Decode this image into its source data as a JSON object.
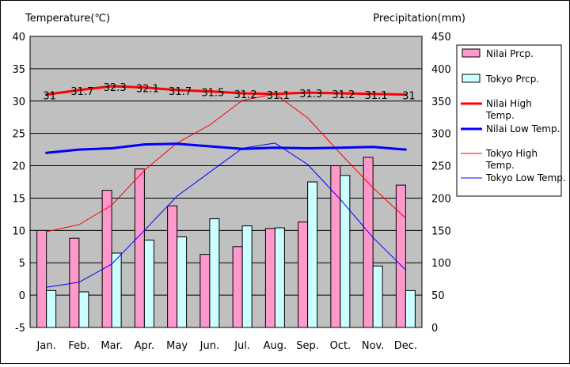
{
  "chart_data": {
    "type": "bar+line",
    "y_left_label": "Temperature(℃)",
    "y_right_label": "Precipitation(mm)",
    "y_left_range": [
      -5,
      40
    ],
    "y_left_ticks": [
      "-5",
      "0",
      "5",
      "10",
      "15",
      "20",
      "25",
      "30",
      "35",
      "40"
    ],
    "y_right_range": [
      0,
      450
    ],
    "y_right_ticks": [
      "0",
      "50",
      "100",
      "150",
      "200",
      "250",
      "300",
      "350",
      "400",
      "450"
    ],
    "categories": [
      "Jan.",
      "Feb.",
      "Mar.",
      "Apr.",
      "May",
      "Jun.",
      "Jul.",
      "Aug.",
      "Sep.",
      "Oct.",
      "Nov.",
      "Dec."
    ],
    "grid": "horizontal",
    "legend_position": "right",
    "bar_series": [
      {
        "name": "Nilai Prcp.",
        "color": "#ff99cc",
        "values": [
          150,
          138,
          212,
          245,
          188,
          113,
          125,
          153,
          163,
          250,
          263,
          220
        ]
      },
      {
        "name": "Tokyo Prcp.",
        "color": "#ccffff",
        "values": [
          57,
          55,
          115,
          135,
          140,
          168,
          157,
          154,
          225,
          235,
          95,
          57
        ]
      }
    ],
    "line_series": [
      {
        "name": "Nilai High Temp.",
        "color": "#ff0000",
        "width": 3,
        "values": [
          31,
          31.7,
          32.3,
          32.1,
          31.7,
          31.5,
          31.2,
          31.1,
          31.3,
          31.2,
          31.1,
          31
        ],
        "labels": [
          "31",
          "31.7",
          "32.3",
          "32.1",
          "31.7",
          "31.5",
          "31.2",
          "31.1",
          "31.3",
          "31.2",
          "31.1",
          "31"
        ]
      },
      {
        "name": "Nilai Low Temp.",
        "color": "#0000ff",
        "width": 3,
        "values": [
          22,
          22.5,
          22.7,
          23.3,
          23.4,
          23,
          22.6,
          22.8,
          22.7,
          22.8,
          22.9,
          22.5
        ]
      },
      {
        "name": "Tokyo High Temp.",
        "color": "#ff0000",
        "width": 1,
        "values": [
          9.8,
          10.9,
          13.9,
          19.3,
          23.5,
          26.3,
          30.1,
          31.1,
          27.4,
          21.9,
          16.6,
          11.9
        ]
      },
      {
        "name": "Tokyo Low Temp.",
        "color": "#0000ff",
        "width": 1,
        "values": [
          1.2,
          2,
          4.8,
          10,
          15.3,
          19,
          22.7,
          23.5,
          20.2,
          14.8,
          8.9,
          3.9
        ]
      }
    ],
    "legend": [
      {
        "label": "Nilai Prcp.",
        "kind": "bar",
        "color": "#ff99cc"
      },
      {
        "label": "Tokyo Prcp.",
        "kind": "bar",
        "color": "#ccffff"
      },
      {
        "label": "Nilai High Temp.",
        "kind": "line",
        "color": "#ff0000",
        "width": 3
      },
      {
        "label": "Nilai Low Temp.",
        "kind": "line",
        "color": "#0000ff",
        "width": 3
      },
      {
        "label": "Tokyo High Temp.",
        "kind": "line",
        "color": "#ff0000",
        "width": 1
      },
      {
        "label": "Tokyo Low Temp.",
        "kind": "line",
        "color": "#0000ff",
        "width": 1
      }
    ]
  }
}
